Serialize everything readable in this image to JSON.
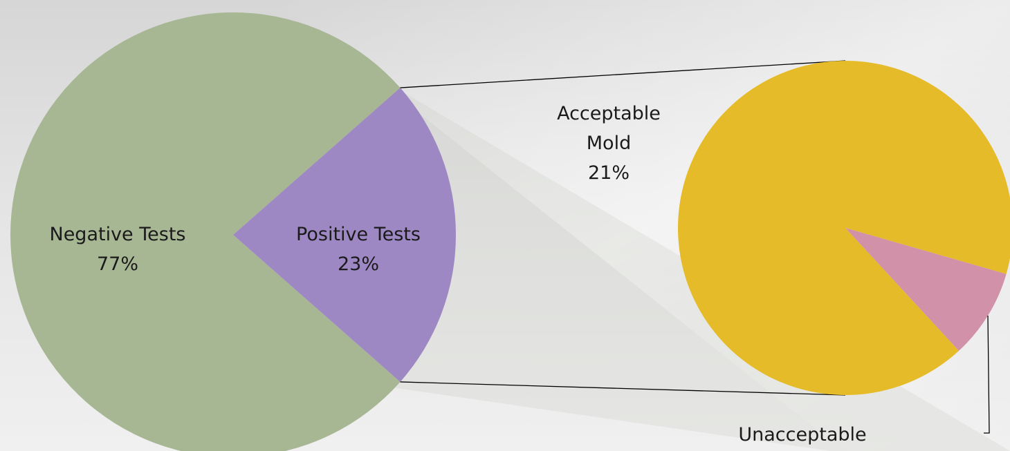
{
  "chart_data": {
    "type": "pie",
    "categories": [
      "Negative Tests",
      "Positive Tests"
    ],
    "values": [
      77,
      23
    ],
    "value_labels": [
      "77%",
      "23%"
    ],
    "colors": [
      "#a7b794",
      "#9e88c3"
    ],
    "breakout": {
      "categories": [
        "Acceptable Mold",
        "Unacceptable"
      ],
      "values": [
        21,
        2
      ],
      "value_labels": [
        "21%",
        null
      ],
      "colors": [
        "#e5bb2a",
        "#d191a8"
      ]
    }
  }
}
